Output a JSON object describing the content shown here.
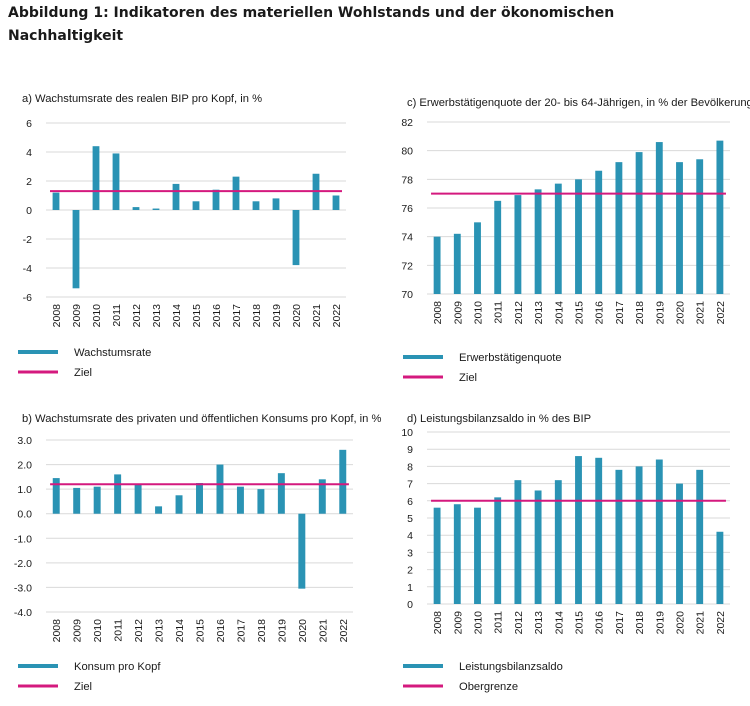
{
  "figure": {
    "title": "Abbildung 1: Indikatoren des materiellen Wohlstands und der ökonomischen Nachhaltigkeit"
  },
  "colors": {
    "bar": "#2a93b4",
    "target": "#d4197e",
    "grid": "#d9d9d9"
  },
  "chart_data": [
    {
      "id": "a",
      "type": "bar",
      "title": "a) Wachstumsrate des realen BIP pro Kopf, in %",
      "categories": [
        "2008",
        "2009",
        "2010",
        "2011",
        "2012",
        "2013",
        "2014",
        "2015",
        "2016",
        "2017",
        "2018",
        "2019",
        "2020",
        "2021",
        "2022"
      ],
      "values": [
        1.2,
        -5.4,
        4.4,
        3.9,
        0.2,
        0.1,
        1.8,
        0.6,
        1.4,
        2.3,
        0.6,
        0.8,
        -3.8,
        2.5,
        1.0
      ],
      "target": 1.3,
      "ylim": [
        -6,
        6
      ],
      "yticks": [
        6,
        4,
        2,
        0,
        -2,
        -4,
        -6
      ],
      "ytick_labels": [
        "6",
        "4",
        "2",
        "0",
        "-2",
        "-4",
        "-6"
      ],
      "grid": true,
      "legend": {
        "placement": "bottom",
        "bar_label": "Wachstumsrate",
        "line_label": "Ziel"
      }
    },
    {
      "id": "b",
      "type": "bar",
      "title": "b) Wachstumsrate des privaten und öffentlichen Konsums pro Kopf, in %",
      "categories": [
        "2008",
        "2009",
        "2010",
        "2011",
        "2012",
        "2013",
        "2014",
        "2015",
        "2016",
        "2017",
        "2018",
        "2019",
        "2020",
        "2021",
        "2022"
      ],
      "values": [
        1.45,
        1.05,
        1.1,
        1.6,
        1.2,
        0.3,
        0.75,
        1.25,
        2.0,
        1.1,
        1.0,
        1.65,
        -3.05,
        1.4,
        2.6
      ],
      "target": 1.2,
      "ylim": [
        -4,
        3
      ],
      "yticks": [
        3,
        2,
        1,
        0,
        -1,
        -2,
        -3,
        -4
      ],
      "ytick_labels": [
        "3.0",
        "2.0",
        "1.0",
        "0.0",
        "-1.0",
        "-2.0",
        "-3.0",
        "-4.0"
      ],
      "grid": true,
      "legend": {
        "placement": "bottom",
        "bar_label": "Konsum pro Kopf",
        "line_label": "Ziel"
      }
    },
    {
      "id": "c",
      "type": "bar",
      "title": "c) Erwerbstätigenquote der 20- bis 64-Jährigen, in % der Bevölkerung",
      "categories": [
        "2008",
        "2009",
        "2010",
        "2011",
        "2012",
        "2013",
        "2014",
        "2015",
        "2016",
        "2017",
        "2018",
        "2019",
        "2020",
        "2021",
        "2022"
      ],
      "values": [
        74.0,
        74.2,
        75.0,
        76.5,
        76.9,
        77.3,
        77.7,
        78.0,
        78.6,
        79.2,
        79.9,
        80.6,
        79.2,
        79.4,
        80.7
      ],
      "target": 77.0,
      "ylim": [
        70,
        82
      ],
      "yticks": [
        82,
        80,
        78,
        76,
        74,
        72,
        70
      ],
      "ytick_labels": [
        "82",
        "80",
        "78",
        "76",
        "74",
        "72",
        "70"
      ],
      "grid": true,
      "legend": {
        "placement": "bottom",
        "bar_label": "Erwerbstätigenquote",
        "line_label": "Ziel"
      }
    },
    {
      "id": "d",
      "type": "bar",
      "title": "d) Leistungsbilanzsaldo in % des BIP",
      "categories": [
        "2008",
        "2009",
        "2010",
        "2011",
        "2012",
        "2013",
        "2014",
        "2015",
        "2016",
        "2017",
        "2018",
        "2019",
        "2020",
        "2021",
        "2022"
      ],
      "values": [
        5.6,
        5.8,
        5.6,
        6.2,
        7.2,
        6.6,
        7.2,
        8.6,
        8.5,
        7.8,
        8.0,
        8.4,
        7.0,
        7.8,
        4.2
      ],
      "target": 6.0,
      "ylim": [
        0,
        10
      ],
      "yticks": [
        10,
        9,
        8,
        7,
        6,
        5,
        4,
        3,
        2,
        1,
        0
      ],
      "ytick_labels": [
        "10",
        "9",
        "8",
        "7",
        "6",
        "5",
        "4",
        "3",
        "2",
        "1",
        "0"
      ],
      "grid": true,
      "legend": {
        "placement": "bottom",
        "bar_label": "Leistungsbilanzsaldo",
        "line_label": "Obergrenze"
      }
    }
  ]
}
